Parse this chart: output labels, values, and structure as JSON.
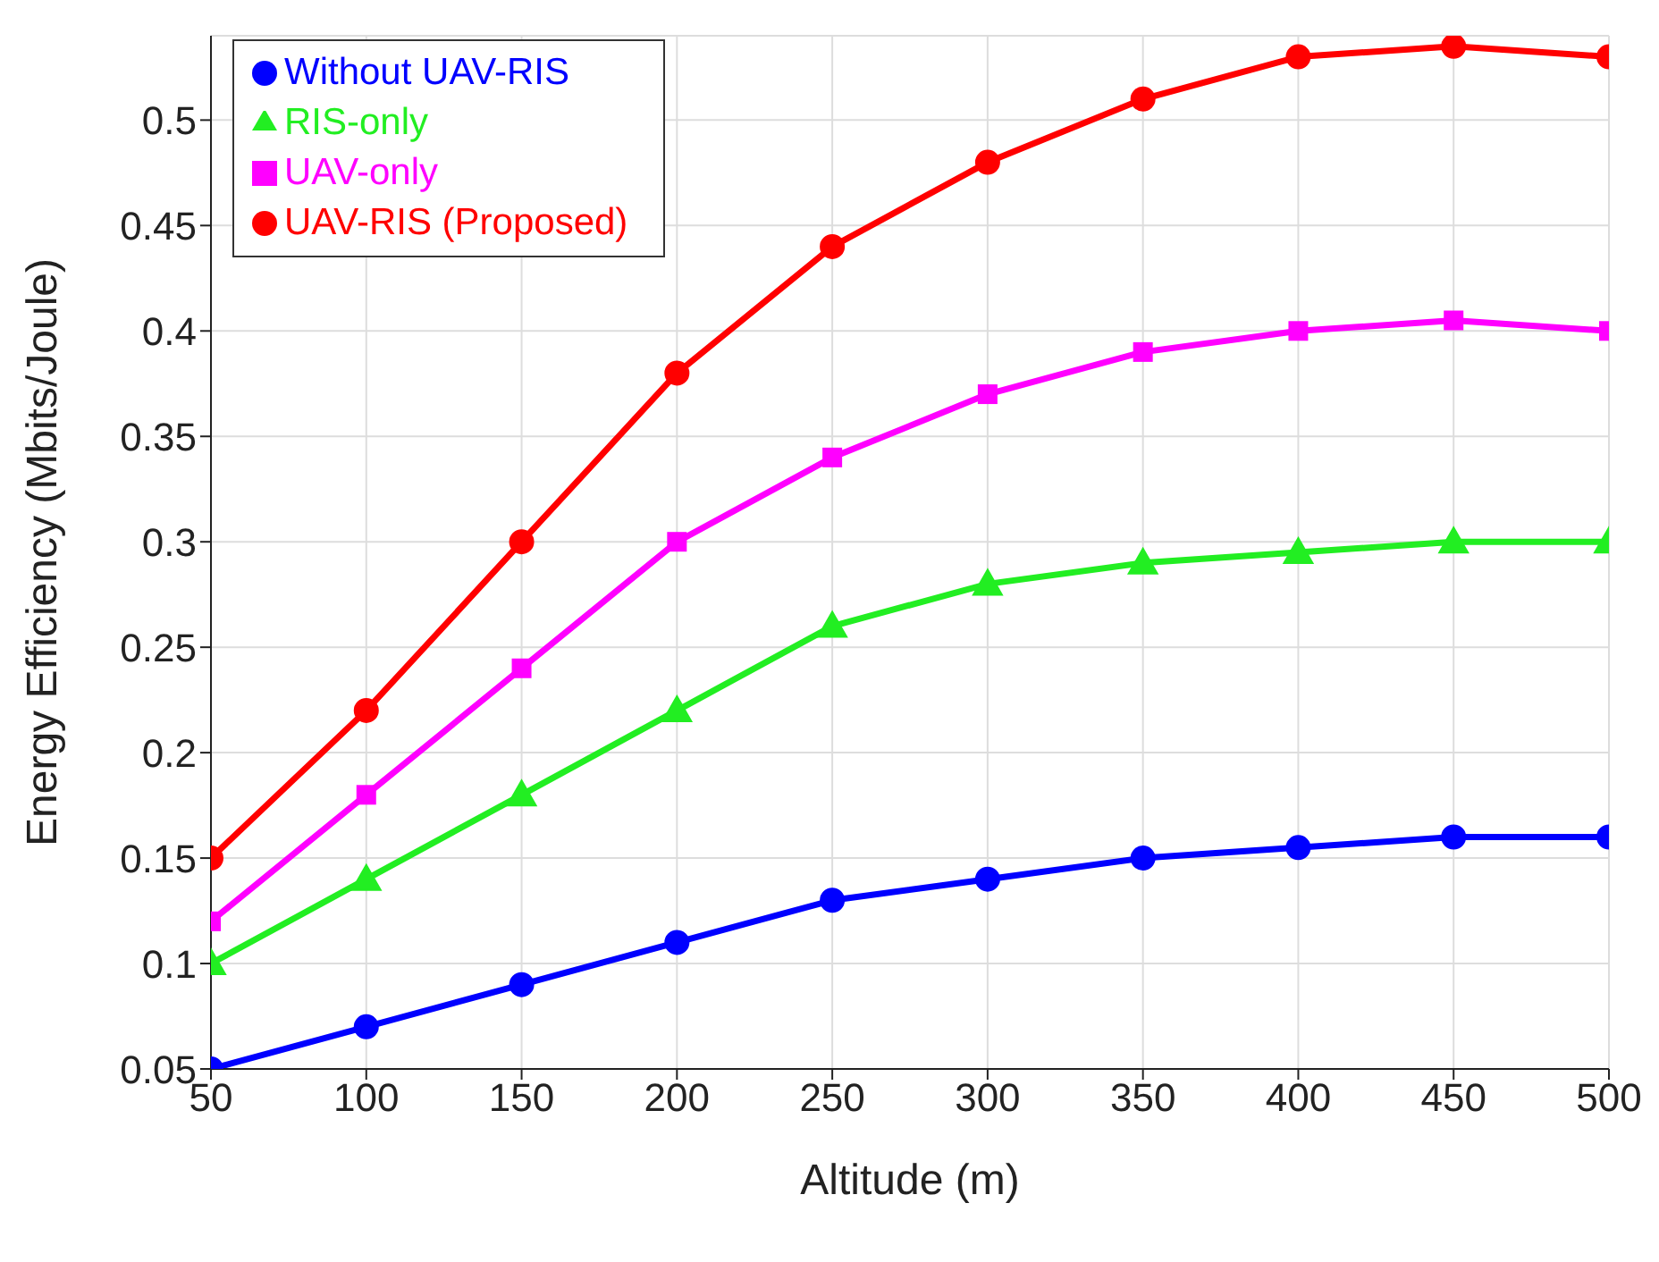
{
  "chart_data": {
    "type": "line",
    "xlabel": "Altitude (m)",
    "ylabel": "Energy Efficiency (Mbits/Joule)",
    "x": [
      50,
      100,
      150,
      200,
      250,
      300,
      350,
      400,
      450,
      500
    ],
    "xlim": [
      50,
      500
    ],
    "xticks": [
      50,
      100,
      150,
      200,
      250,
      300,
      350,
      400,
      450,
      500
    ],
    "ylim": [
      0.05,
      0.54
    ],
    "yticks": [
      0.05,
      0.1,
      0.15,
      0.2,
      0.25,
      0.3,
      0.35,
      0.4,
      0.45,
      0.5
    ],
    "grid": true,
    "legend": "top left",
    "line_style": "solid",
    "series": [
      {
        "name": "Without UAV-RIS",
        "color": "#0000ff",
        "marker": "circle",
        "values": [
          0.05,
          0.07,
          0.09,
          0.11,
          0.13,
          0.14,
          0.15,
          0.155,
          0.16,
          0.16
        ]
      },
      {
        "name": "RIS-only",
        "color": "#22ee22",
        "marker": "triangle",
        "values": [
          0.1,
          0.14,
          0.18,
          0.22,
          0.26,
          0.28,
          0.29,
          0.295,
          0.3,
          0.3
        ]
      },
      {
        "name": "UAV-only",
        "color": "#ff00ff",
        "marker": "square",
        "values": [
          0.12,
          0.18,
          0.24,
          0.3,
          0.34,
          0.37,
          0.39,
          0.4,
          0.405,
          0.4
        ]
      },
      {
        "name": "UAV-RIS (Proposed)",
        "color": "#ff0000",
        "marker": "circle",
        "values": [
          0.15,
          0.22,
          0.3,
          0.38,
          0.44,
          0.48,
          0.51,
          0.53,
          0.535,
          0.53
        ]
      }
    ]
  }
}
